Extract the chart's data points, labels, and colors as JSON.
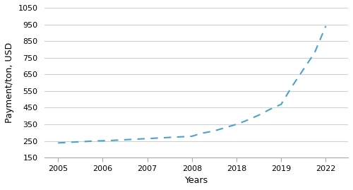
{
  "x_positions": [
    0,
    1,
    2,
    3,
    4,
    5,
    6
  ],
  "x_labels": [
    "2005",
    "2006",
    "2007",
    "2008",
    "2018",
    "2019",
    "2022"
  ],
  "x_data": [
    0,
    0.14,
    0.28,
    0.42,
    0.57,
    0.71,
    0.85,
    1.0,
    1.14,
    1.28,
    1.42,
    1.57,
    1.71,
    1.85,
    2.0,
    2.14,
    2.28,
    2.42,
    2.57,
    2.71,
    2.85,
    3.0,
    3.2,
    3.5,
    3.75,
    4.0,
    4.2,
    4.5,
    4.75,
    5.0,
    5.25,
    5.5,
    5.75,
    6.0
  ],
  "y_data": [
    238,
    240,
    242,
    244,
    246,
    248,
    250,
    251,
    252,
    254,
    256,
    258,
    260,
    262,
    264,
    266,
    268,
    270,
    272,
    274,
    276,
    278,
    295,
    310,
    330,
    350,
    370,
    405,
    440,
    470,
    580,
    680,
    780,
    940
  ],
  "line_color": "#4BA3C7",
  "xlabel": "Years",
  "ylabel": "Payment/ton, USD",
  "ylim": [
    150,
    1050
  ],
  "yticks": [
    150,
    250,
    350,
    450,
    550,
    650,
    750,
    850,
    950,
    1050
  ],
  "background_color": "#ffffff",
  "grid_color": "#d0d0d0"
}
